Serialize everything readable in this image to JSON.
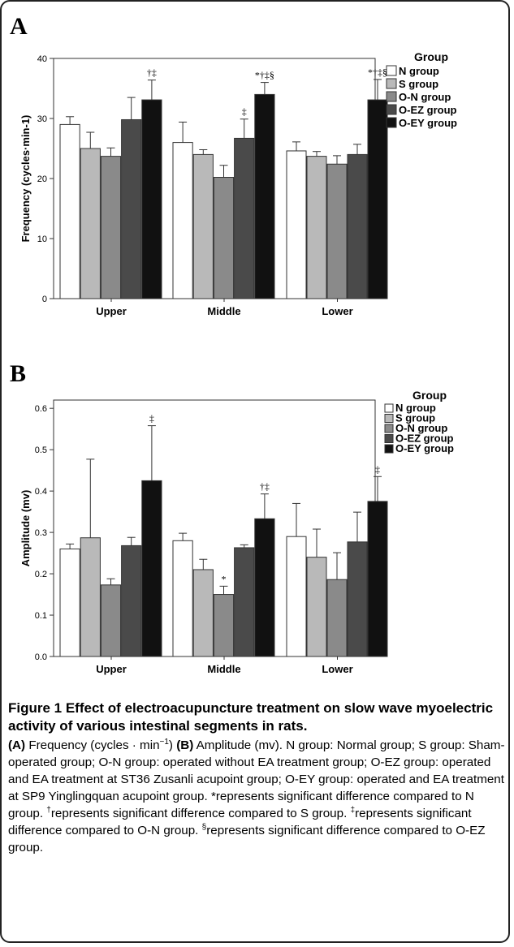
{
  "legend_title": "Group",
  "chart_data": [
    {
      "type": "bar",
      "panel": "A",
      "title": "",
      "xlabel": "",
      "ylabel": "Frequency (cycles·min-1)",
      "ylim": [
        0,
        40
      ],
      "yticks": [
        0,
        10,
        20,
        30,
        40
      ],
      "legend": "right",
      "grid": false,
      "categories": [
        "Upper",
        "Middle",
        "Lower"
      ],
      "series": [
        {
          "name": "N group",
          "color": "#ffffff",
          "values": [
            29.0,
            26.0,
            24.6
          ],
          "errors": [
            1.3,
            3.4,
            1.5
          ]
        },
        {
          "name": "S group",
          "color": "#b9b9b9",
          "values": [
            25.0,
            24.0,
            23.7
          ],
          "errors": [
            2.7,
            0.8,
            0.8
          ]
        },
        {
          "name": "O-N group",
          "color": "#8a8a8a",
          "values": [
            23.7,
            20.2,
            22.4
          ],
          "errors": [
            1.4,
            2.0,
            1.4
          ]
        },
        {
          "name": "O-EZ group",
          "color": "#4a4a4a",
          "values": [
            29.8,
            26.7,
            24.0
          ],
          "errors": [
            3.7,
            3.2,
            1.7
          ]
        },
        {
          "name": "O-EY group",
          "color": "#111111",
          "values": [
            33.1,
            34.0,
            33.1
          ],
          "errors": [
            3.3,
            2.0,
            3.4
          ]
        }
      ],
      "annotations": [
        {
          "category": "Upper",
          "series": "O-EY group",
          "text": "†‡"
        },
        {
          "category": "Middle",
          "series": "O-EZ group",
          "text": "‡"
        },
        {
          "category": "Middle",
          "series": "O-EY group",
          "text": "*†‡§"
        },
        {
          "category": "Lower",
          "series": "O-EY group",
          "text": "*†‡§"
        }
      ]
    },
    {
      "type": "bar",
      "panel": "B",
      "title": "",
      "xlabel": "",
      "ylabel": "Amplitude (mv)",
      "ylim": [
        0,
        0.62
      ],
      "yticks": [
        0.0,
        0.1,
        0.2,
        0.3,
        0.4,
        0.5,
        0.6
      ],
      "legend": "right",
      "grid": false,
      "categories": [
        "Upper",
        "Middle",
        "Lower"
      ],
      "series": [
        {
          "name": "N group",
          "color": "#ffffff",
          "values": [
            0.26,
            0.28,
            0.29
          ],
          "errors": [
            0.012,
            0.018,
            0.08
          ]
        },
        {
          "name": "S group",
          "color": "#b9b9b9",
          "values": [
            0.287,
            0.21,
            0.24
          ],
          "errors": [
            0.19,
            0.025,
            0.068
          ]
        },
        {
          "name": "O-N group",
          "color": "#8a8a8a",
          "values": [
            0.173,
            0.15,
            0.186
          ],
          "errors": [
            0.015,
            0.02,
            0.065
          ]
        },
        {
          "name": "O-EZ group",
          "color": "#4a4a4a",
          "values": [
            0.268,
            0.263,
            0.277
          ],
          "errors": [
            0.02,
            0.007,
            0.072
          ]
        },
        {
          "name": "O-EY group",
          "color": "#111111",
          "values": [
            0.425,
            0.333,
            0.375
          ],
          "errors": [
            0.133,
            0.06,
            0.06
          ]
        }
      ],
      "annotations": [
        {
          "category": "Upper",
          "series": "O-EY group",
          "text": "‡"
        },
        {
          "category": "Middle",
          "series": "O-N group",
          "text": "*"
        },
        {
          "category": "Middle",
          "series": "O-EY group",
          "text": "†‡"
        },
        {
          "category": "Lower",
          "series": "O-EY group",
          "text": "‡"
        }
      ]
    }
  ],
  "caption": {
    "title": "Figure 1 Effect of electroacupuncture treatment on slow wave myoelectric activity of various intestinal segments in rats.",
    "part_a_label": "(A)",
    "part_a_text": " Frequency (cycles · min",
    "part_a_sup": "−1",
    "part_a_close": ") ",
    "part_b_label": "(B)",
    "part_b_text": " Amplitude (mv). N group: Normal group; S group: Sham-operated group; O-N group: operated without EA treatment group; O-EZ group: operated and EA treatment at ST36 Zusanli acupoint group; O-EY group: operated and EA treatment at SP9 Yinglingquan acupoint group. *represents significant difference compared to N group. ",
    "dagger_sup": "†",
    "dagger_text": "represents significant difference compared to S group. ",
    "ddagger_sup": "‡",
    "ddagger_text": "represents significant difference compared to O-N group. ",
    "section_sup": "§",
    "section_text": "represents significant difference compared to O-EZ group."
  }
}
